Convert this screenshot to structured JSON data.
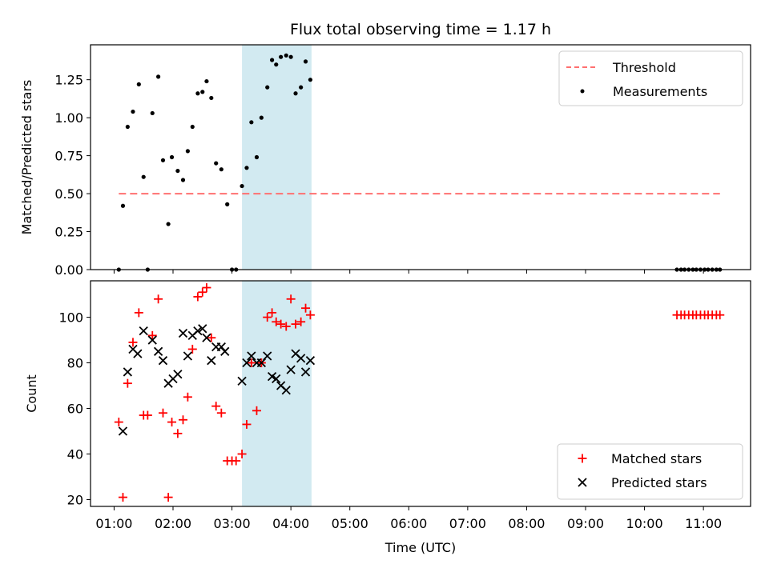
{
  "chart_data": [
    {
      "type": "scatter",
      "title": "Flux total observing time = 1.17 h",
      "xlabel": "",
      "ylabel": "Matched/Predicted stars",
      "xlim_hours": [
        0.6,
        11.8
      ],
      "ylim": [
        0,
        1.48
      ],
      "yticks": [
        0.0,
        0.25,
        0.5,
        0.75,
        1.0,
        1.25
      ],
      "ytick_labels": [
        "0.00",
        "0.25",
        "0.50",
        "0.75",
        "1.00",
        "1.25"
      ],
      "shaded_span_hours": [
        3.17,
        4.35
      ],
      "shaded_color": "#add8e6",
      "legend_position": "top-right",
      "threshold": {
        "name": "Threshold",
        "value": 0.5,
        "x_range_hours": [
          1.08,
          11.28
        ],
        "color": "#ff7070",
        "style": "dashed"
      },
      "series": [
        {
          "name": "Measurements",
          "color": "#000000",
          "marker": "dot",
          "x": [
            1.08,
            1.15,
            1.23,
            1.32,
            1.42,
            1.5,
            1.57,
            1.65,
            1.75,
            1.83,
            1.92,
            1.98,
            2.08,
            2.17,
            2.25,
            2.33,
            2.42,
            2.5,
            2.57,
            2.65,
            2.73,
            2.82,
            2.92,
            3.0,
            3.07,
            3.17,
            3.25,
            3.33,
            3.42,
            3.5,
            3.6,
            3.68,
            3.75,
            3.83,
            3.92,
            4.0,
            4.08,
            4.17,
            4.25,
            4.33,
            10.55,
            10.62,
            10.68,
            10.75,
            10.82,
            10.88,
            10.95,
            11.02,
            11.08,
            11.15,
            11.22,
            11.28
          ],
          "y": [
            0.0,
            0.42,
            0.94,
            1.04,
            1.22,
            0.61,
            0.0,
            1.03,
            1.27,
            0.72,
            0.3,
            0.74,
            0.65,
            0.59,
            0.78,
            0.94,
            1.16,
            1.17,
            1.24,
            1.13,
            0.7,
            0.66,
            0.43,
            0.0,
            0.0,
            0.55,
            0.67,
            0.97,
            0.74,
            1.0,
            1.2,
            1.38,
            1.35,
            1.4,
            1.41,
            1.4,
            1.16,
            1.2,
            1.37,
            1.25,
            0.0,
            0.0,
            0.0,
            0.0,
            0.0,
            0.0,
            0.0,
            0.0,
            0.0,
            0.0,
            0.0,
            0.0
          ]
        }
      ]
    },
    {
      "type": "scatter",
      "title": "",
      "xlabel": "Time (UTC)",
      "ylabel": "Count",
      "xlim_hours": [
        0.6,
        11.8
      ],
      "ylim": [
        17,
        116
      ],
      "yticks": [
        20,
        40,
        60,
        80,
        100
      ],
      "ytick_labels": [
        "20",
        "40",
        "60",
        "80",
        "100"
      ],
      "xticks_hours": [
        1,
        2,
        3,
        4,
        5,
        6,
        7,
        8,
        9,
        10,
        11
      ],
      "xtick_labels": [
        "01:00",
        "02:00",
        "03:00",
        "04:00",
        "05:00",
        "06:00",
        "07:00",
        "08:00",
        "09:00",
        "10:00",
        "11:00"
      ],
      "shaded_span_hours": [
        3.17,
        4.35
      ],
      "shaded_color": "#add8e6",
      "legend_position": "bottom-right",
      "series": [
        {
          "name": "Matched stars",
          "color": "#ff0000",
          "marker": "plus",
          "x": [
            1.08,
            1.15,
            1.23,
            1.32,
            1.42,
            1.5,
            1.57,
            1.65,
            1.75,
            1.83,
            1.92,
            1.98,
            2.08,
            2.17,
            2.25,
            2.33,
            2.42,
            2.5,
            2.57,
            2.65,
            2.73,
            2.82,
            2.92,
            3.0,
            3.07,
            3.17,
            3.25,
            3.33,
            3.42,
            3.5,
            3.6,
            3.68,
            3.75,
            3.83,
            3.92,
            4.0,
            4.08,
            4.17,
            4.25,
            4.33,
            10.55,
            10.62,
            10.68,
            10.75,
            10.82,
            10.88,
            10.95,
            11.02,
            11.08,
            11.15,
            11.22,
            11.28
          ],
          "y": [
            54,
            21,
            71,
            89,
            102,
            57,
            57,
            92,
            108,
            58,
            21,
            54,
            49,
            55,
            65,
            86,
            109,
            111,
            113,
            91,
            61,
            58,
            37,
            37,
            37,
            40,
            53,
            80,
            59,
            80,
            100,
            102,
            98,
            97,
            96,
            108,
            97,
            98,
            104,
            101,
            101,
            101,
            101,
            101,
            101,
            101,
            101,
            101,
            101,
            101,
            101,
            101
          ]
        },
        {
          "name": "Predicted stars",
          "color": "#000000",
          "marker": "x",
          "x": [
            1.15,
            1.23,
            1.32,
            1.4,
            1.5,
            1.65,
            1.75,
            1.83,
            1.92,
            2.0,
            2.08,
            2.17,
            2.25,
            2.33,
            2.42,
            2.5,
            2.57,
            2.65,
            2.73,
            2.82,
            2.88,
            3.17,
            3.25,
            3.33,
            3.42,
            3.5,
            3.6,
            3.68,
            3.75,
            3.83,
            3.92,
            4.0,
            4.08,
            4.17,
            4.25,
            4.33
          ],
          "y": [
            50,
            76,
            86,
            84,
            94,
            90,
            85,
            81,
            71,
            73,
            75,
            93,
            83,
            92,
            94,
            95,
            91,
            81,
            87,
            87,
            85,
            72,
            80,
            83,
            80,
            80,
            83,
            74,
            73,
            70,
            68,
            77,
            84,
            82,
            76,
            81
          ]
        }
      ]
    }
  ]
}
